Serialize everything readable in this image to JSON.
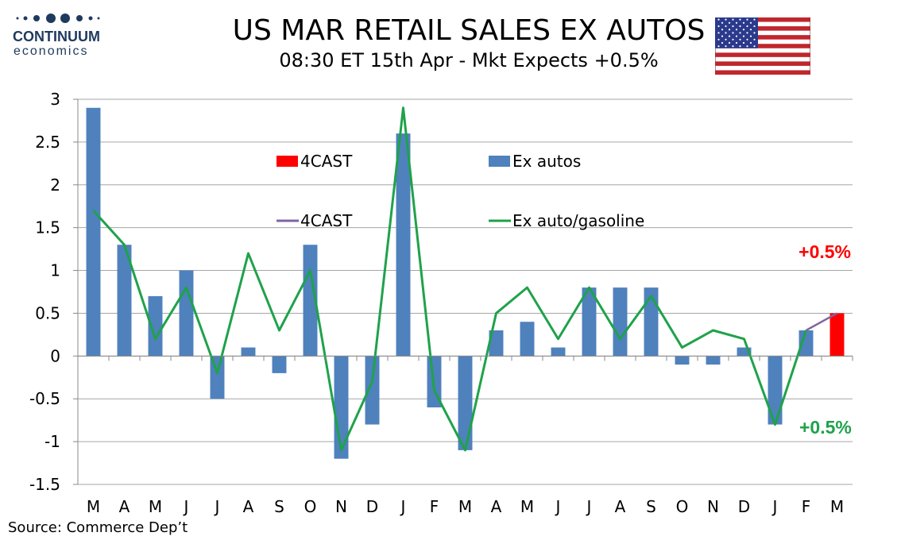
{
  "header": {
    "logo_line1": "CONTINUUM",
    "logo_line2": "economics",
    "title": "US MAR RETAIL SALES EX AUTOS",
    "subtitle": "08:30 ET 15th Apr - Mkt Expects +0.5%"
  },
  "footer": {
    "source": "Source: Commerce Dep’t"
  },
  "colors": {
    "bar": "#4f81bd",
    "forecast_bar": "#ff0000",
    "line": "#1fa24a",
    "forecast_line": "#8064a2",
    "grid": "#a6a6a6",
    "annot_red": "#ff0000",
    "annot_green": "#1fa24a",
    "logo": "#1f3a5f"
  },
  "chart_data": {
    "type": "bar",
    "categories": [
      "M",
      "A",
      "M",
      "J",
      "J",
      "A",
      "S",
      "O",
      "N",
      "D",
      "J",
      "F",
      "M",
      "A",
      "M",
      "J",
      "J",
      "A",
      "S",
      "O",
      "N",
      "D",
      "J",
      "F",
      "M"
    ],
    "ylim": [
      -1.5,
      3
    ],
    "yticks": [
      "-1.5",
      "-1",
      "-0.5",
      "0",
      "0.5",
      "1",
      "1.5",
      "2",
      "2.5",
      "3"
    ],
    "ytick_values": [
      -1.5,
      -1,
      -0.5,
      0,
      0.5,
      1,
      1.5,
      2,
      2.5,
      3
    ],
    "grid": true,
    "series": [
      {
        "name": "Ex autos",
        "type": "bar",
        "values": [
          2.9,
          1.3,
          0.7,
          1.0,
          -0.5,
          0.1,
          -0.2,
          1.3,
          -1.2,
          -0.8,
          2.6,
          -0.6,
          -1.1,
          0.3,
          0.4,
          0.1,
          0.8,
          0.8,
          0.8,
          -0.1,
          -0.1,
          0.1,
          -0.8,
          0.3,
          null
        ]
      },
      {
        "name": "4CAST",
        "type": "bar",
        "values": [
          null,
          null,
          null,
          null,
          null,
          null,
          null,
          null,
          null,
          null,
          null,
          null,
          null,
          null,
          null,
          null,
          null,
          null,
          null,
          null,
          null,
          null,
          null,
          null,
          0.5
        ]
      },
      {
        "name": "Ex auto/gasoline",
        "type": "line",
        "values": [
          1.7,
          1.3,
          0.2,
          0.8,
          -0.2,
          1.2,
          0.3,
          1.0,
          -1.1,
          -0.3,
          2.9,
          -0.4,
          -1.1,
          0.5,
          0.8,
          0.2,
          0.8,
          0.2,
          0.7,
          0.1,
          0.3,
          0.2,
          -0.8,
          0.3,
          null
        ]
      },
      {
        "name": "4CAST",
        "type": "line",
        "values": [
          null,
          null,
          null,
          null,
          null,
          null,
          null,
          null,
          null,
          null,
          null,
          null,
          null,
          null,
          null,
          null,
          null,
          null,
          null,
          null,
          null,
          null,
          null,
          0.3,
          0.5
        ]
      }
    ],
    "legend": [
      {
        "label": "4CAST",
        "kind": "bar-forecast"
      },
      {
        "label": "Ex autos",
        "kind": "bar"
      },
      {
        "label": "4CAST",
        "kind": "line-forecast"
      },
      {
        "label": "Ex auto/gasoline",
        "kind": "line"
      }
    ],
    "legend_placement": "top-center",
    "annotations": [
      {
        "text": "+0.5%",
        "color": "red",
        "near": "forecast bar"
      },
      {
        "text": "+0.5%",
        "color": "green",
        "near": "forecast line"
      }
    ]
  }
}
